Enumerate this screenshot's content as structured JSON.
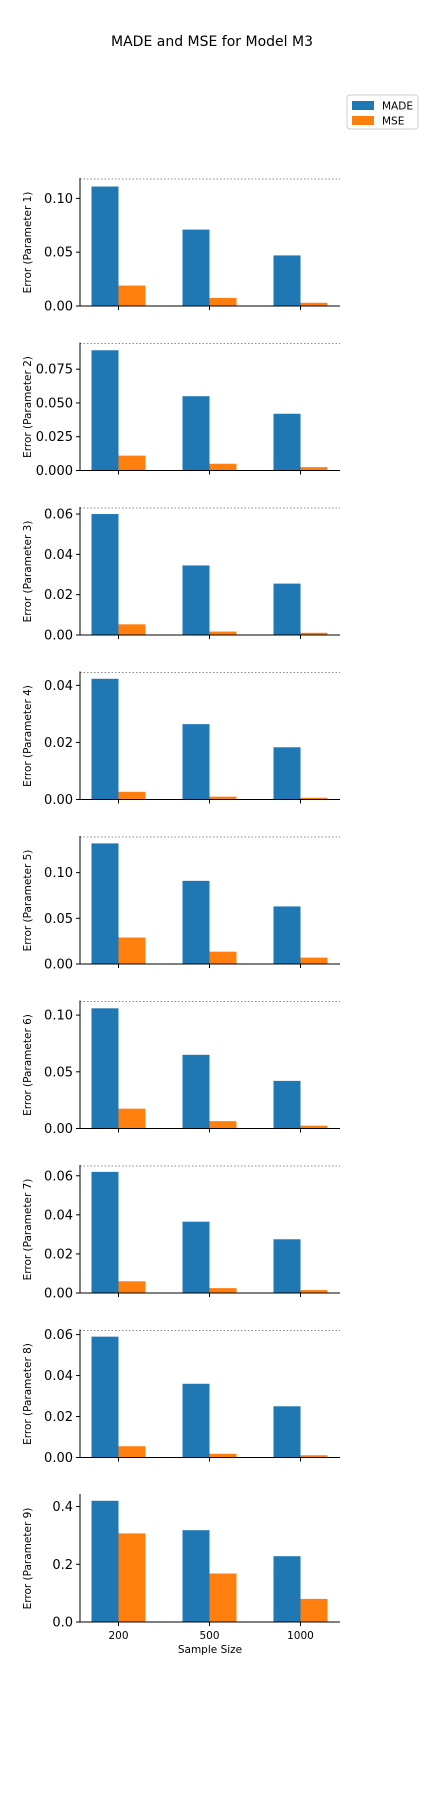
{
  "title": "MADE and MSE for Model M3",
  "colors": {
    "MADE": "#1f77b4",
    "MSE": "#ff7f0e"
  },
  "chart_data": {
    "type": "bar",
    "title": "MADE and MSE for Model M3",
    "xlabel": "Sample Size",
    "categories": [
      "200",
      "500",
      "1000"
    ],
    "legend": {
      "position": "top-right",
      "entries": [
        "MADE",
        "MSE"
      ]
    },
    "grid": false,
    "panels": [
      {
        "ylabel": "Error (Parameter 1)",
        "ylim": [
          0,
          0.118
        ],
        "ref_line": 0.118,
        "yticks": [
          0,
          0.05,
          0.1
        ],
        "ytick_labels": [
          "0.00",
          "0.05",
          "0.10"
        ],
        "series": [
          {
            "name": "MADE",
            "values": [
              0.111,
              0.071,
              0.047
            ]
          },
          {
            "name": "MSE",
            "values": [
              0.019,
              0.0075,
              0.003
            ]
          }
        ]
      },
      {
        "ylabel": "Error (Parameter 2)",
        "ylim": [
          0,
          0.094
        ],
        "ref_line": 0.094,
        "yticks": [
          0,
          0.025,
          0.05,
          0.075
        ],
        "ytick_labels": [
          "0.000",
          "0.025",
          "0.050",
          "0.075"
        ],
        "series": [
          {
            "name": "MADE",
            "values": [
              0.089,
              0.055,
              0.042
            ]
          },
          {
            "name": "MSE",
            "values": [
              0.011,
              0.005,
              0.0025
            ]
          }
        ]
      },
      {
        "ylabel": "Error (Parameter 3)",
        "ylim": [
          0,
          0.063
        ],
        "ref_line": 0.063,
        "yticks": [
          0,
          0.02,
          0.04,
          0.06
        ],
        "ytick_labels": [
          "0.00",
          "0.02",
          "0.04",
          "0.06"
        ],
        "series": [
          {
            "name": "MADE",
            "values": [
              0.06,
              0.0345,
              0.0255
            ]
          },
          {
            "name": "MSE",
            "values": [
              0.0053,
              0.0017,
              0.0011
            ]
          }
        ]
      },
      {
        "ylabel": "Error (Parameter 4)",
        "ylim": [
          0,
          0.0445
        ],
        "ref_line": 0.0445,
        "yticks": [
          0,
          0.02,
          0.04
        ],
        "ytick_labels": [
          "0.00",
          "0.02",
          "0.04"
        ],
        "series": [
          {
            "name": "MADE",
            "values": [
              0.0423,
              0.0264,
              0.0183
            ]
          },
          {
            "name": "MSE",
            "values": [
              0.0027,
              0.001,
              0.0006
            ]
          }
        ]
      },
      {
        "ylabel": "Error (Parameter 5)",
        "ylim": [
          0,
          0.139
        ],
        "ref_line": 0.139,
        "yticks": [
          0,
          0.05,
          0.1
        ],
        "ytick_labels": [
          "0.00",
          "0.05",
          "0.10"
        ],
        "series": [
          {
            "name": "MADE",
            "values": [
              0.132,
              0.091,
              0.063
            ]
          },
          {
            "name": "MSE",
            "values": [
              0.029,
              0.0135,
              0.007
            ]
          }
        ]
      },
      {
        "ylabel": "Error (Parameter 6)",
        "ylim": [
          0,
          0.112
        ],
        "ref_line": 0.112,
        "yticks": [
          0,
          0.05,
          0.1
        ],
        "ytick_labels": [
          "0.00",
          "0.05",
          "0.10"
        ],
        "series": [
          {
            "name": "MADE",
            "values": [
              0.106,
              0.065,
              0.042
            ]
          },
          {
            "name": "MSE",
            "values": [
              0.0175,
              0.0065,
              0.0025
            ]
          }
        ]
      },
      {
        "ylabel": "Error (Parameter 7)",
        "ylim": [
          0,
          0.065
        ],
        "ref_line": 0.065,
        "yticks": [
          0,
          0.02,
          0.04,
          0.06
        ],
        "ytick_labels": [
          "0.00",
          "0.02",
          "0.04",
          "0.06"
        ],
        "series": [
          {
            "name": "MADE",
            "values": [
              0.062,
              0.0365,
              0.0275
            ]
          },
          {
            "name": "MSE",
            "values": [
              0.006,
              0.0025,
              0.0015
            ]
          }
        ]
      },
      {
        "ylabel": "Error (Parameter 8)",
        "ylim": [
          0,
          0.062
        ],
        "ref_line": 0.062,
        "yticks": [
          0,
          0.02,
          0.04,
          0.06
        ],
        "ytick_labels": [
          "0.00",
          "0.02",
          "0.04",
          "0.06"
        ],
        "series": [
          {
            "name": "MADE",
            "values": [
              0.059,
              0.036,
              0.025
            ]
          },
          {
            "name": "MSE",
            "values": [
              0.0055,
              0.0018,
              0.0011
            ]
          }
        ]
      },
      {
        "ylabel": "Error (Parameter 9)",
        "ylim": [
          0,
          0.44
        ],
        "yticks": [
          0,
          0.2,
          0.4
        ],
        "ytick_labels": [
          "0.0",
          "0.2",
          "0.4"
        ],
        "series": [
          {
            "name": "MADE",
            "values": [
              0.42,
              0.318,
              0.228
            ]
          },
          {
            "name": "MSE",
            "values": [
              0.307,
              0.168,
              0.08
            ]
          }
        ]
      }
    ]
  }
}
